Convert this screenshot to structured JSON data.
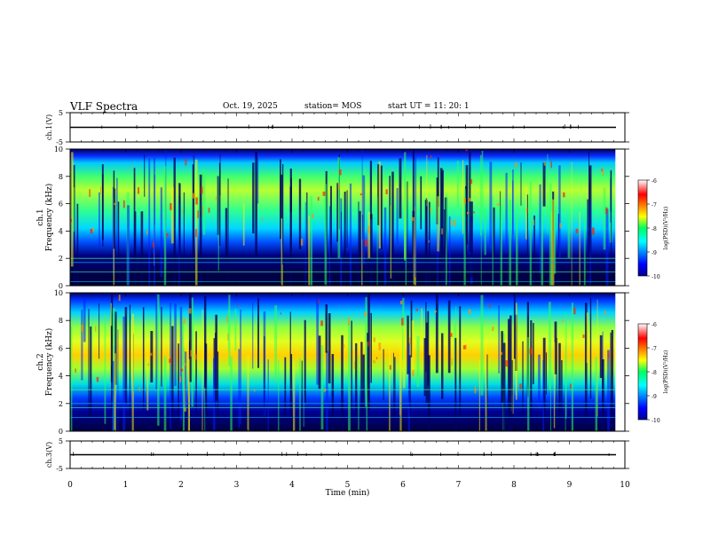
{
  "header": {
    "title": "VLF Spectra",
    "date": "Oct. 19, 2025",
    "station": "station= MOS",
    "start_ut": "start  UT  =   11: 20: 1"
  },
  "chart_data": [
    {
      "type": "line",
      "name": "ch1-waveform",
      "ylabel": "ch.1(V)",
      "ylim": [
        -5,
        5
      ],
      "yticks": [
        -5,
        5
      ],
      "xlim": [
        0,
        10
      ]
    },
    {
      "type": "heatmap",
      "name": "ch1-spectrogram",
      "ylabel": "Frequency (kHz)",
      "channel_label": "ch.1",
      "ylim": [
        0,
        10
      ],
      "yticks": [
        0,
        2,
        4,
        6,
        8,
        10
      ],
      "xlim": [
        0,
        10
      ],
      "data_end_min": 9.83,
      "colorbar": {
        "label": "log(PSD)(V²/Hz)",
        "range": [
          -10,
          -6
        ],
        "ticks": [
          -6,
          -7,
          -8,
          -9,
          -10
        ]
      },
      "features": {
        "emission_band_khz": [
          6,
          9.5
        ],
        "noise_lines_khz": [
          0.3,
          1.0,
          1.7,
          2.0
        ]
      }
    },
    {
      "type": "heatmap",
      "name": "ch2-spectrogram",
      "ylabel": "Frequency (kHz)",
      "channel_label": "ch.2",
      "ylim": [
        0,
        10
      ],
      "yticks": [
        0,
        2,
        4,
        6,
        8,
        10
      ],
      "xlim": [
        0,
        10
      ],
      "data_end_min": 9.83,
      "colorbar": {
        "label": "log(PSD)(V²/Hz)",
        "range": [
          -10,
          -6
        ],
        "ticks": [
          -6,
          -7,
          -8,
          -9,
          -10
        ]
      },
      "features": {
        "emission_band_khz": [
          5,
          8
        ],
        "noise_lines_khz": [
          1.0,
          1.7,
          2.0,
          3.0
        ]
      }
    },
    {
      "type": "line",
      "name": "ch3-waveform",
      "ylabel": "ch.3(V)",
      "ylim": [
        -5,
        5
      ],
      "yticks": [
        -5,
        5
      ],
      "xlim": [
        0,
        10
      ],
      "xlabel": "Time (min)",
      "xticks": [
        0,
        1,
        2,
        3,
        4,
        5,
        6,
        7,
        8,
        9,
        10
      ]
    }
  ]
}
